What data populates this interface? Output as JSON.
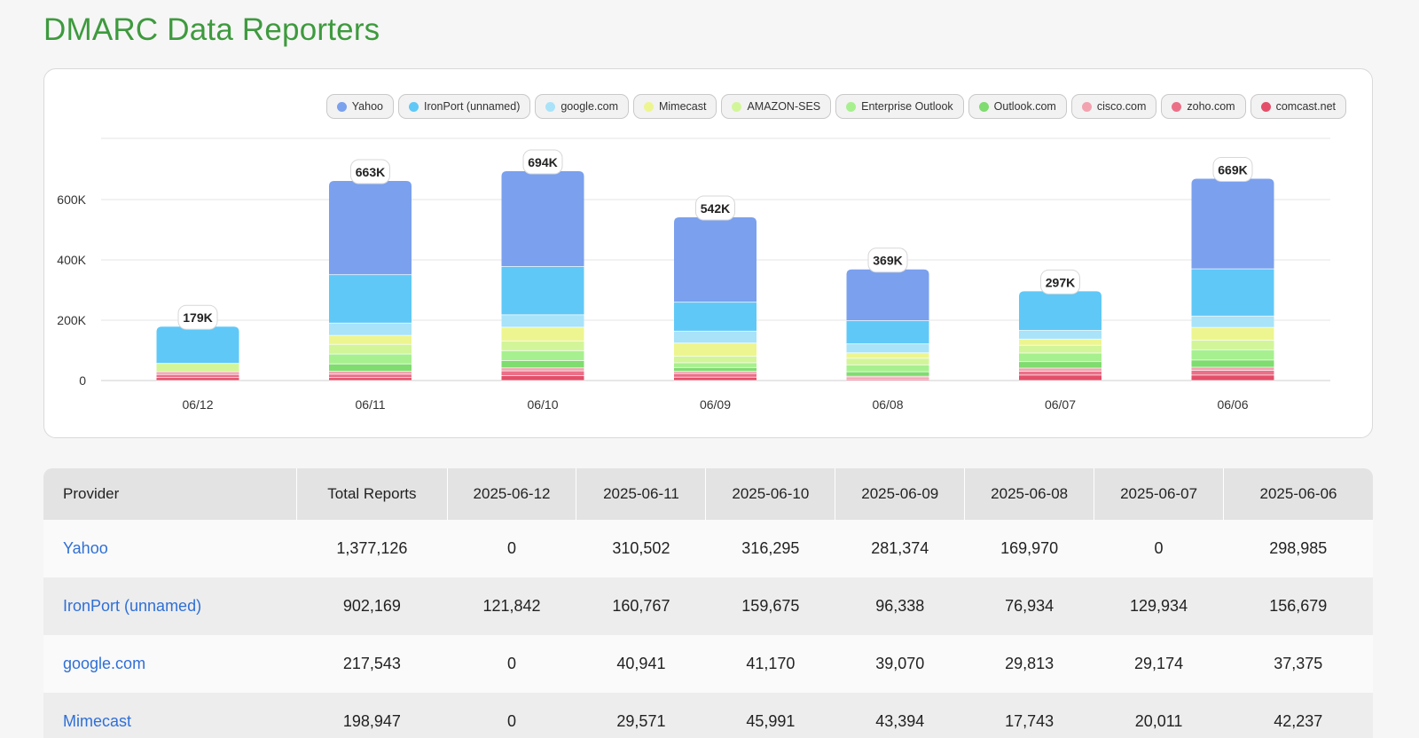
{
  "page": {
    "title": "DMARC Data Reporters"
  },
  "colors": {
    "Yahoo": "#7aa0ee",
    "IronPort (unnamed)": "#5fc8f7",
    "google.com": "#a8e3f9",
    "Mimecast": "#edf590",
    "AMAZON-SES": "#d3f59a",
    "Enterprise Outlook": "#a7f08f",
    "Outlook.com": "#7fdc6f",
    "cisco.com": "#f3a2b0",
    "zoho.com": "#ec6f88",
    "comcast.net": "#e44e69"
  },
  "chart_data": {
    "type": "bar",
    "stacked": true,
    "title": "",
    "xlabel": "",
    "ylabel": "",
    "ylim": [
      0,
      800000
    ],
    "yticks": [
      0,
      200000,
      400000,
      600000
    ],
    "ytick_labels": [
      "0",
      "200K",
      "400K",
      "600K"
    ],
    "legend_position": "top-right",
    "categories": [
      "06/12",
      "06/11",
      "06/10",
      "06/09",
      "06/08",
      "06/07",
      "06/06"
    ],
    "totals_labels": [
      "179K",
      "663K",
      "694K",
      "542K",
      "369K",
      "297K",
      "669K"
    ],
    "series": [
      {
        "name": "Yahoo",
        "values": [
          0,
          310502,
          316295,
          281374,
          169970,
          0,
          298985
        ]
      },
      {
        "name": "IronPort (unnamed)",
        "values": [
          121842,
          160767,
          159675,
          96338,
          76934,
          129934,
          156679
        ]
      },
      {
        "name": "google.com",
        "values": [
          0,
          40941,
          41170,
          39070,
          29813,
          29174,
          37375
        ]
      },
      {
        "name": "Mimecast",
        "values": [
          0,
          29571,
          45991,
          43394,
          17743,
          20011,
          42237
        ]
      },
      {
        "name": "AMAZON-SES",
        "values": [
          28000,
          32000,
          32000,
          22000,
          22000,
          26000,
          32000
        ]
      },
      {
        "name": "Enterprise Outlook",
        "values": [
          0,
          33000,
          33000,
          16000,
          23000,
          28000,
          34000
        ]
      },
      {
        "name": "Outlook.com",
        "values": [
          0,
          24000,
          24000,
          12000,
          15000,
          22000,
          24000
        ]
      },
      {
        "name": "cisco.com",
        "values": [
          9000,
          10000,
          10000,
          8000,
          5000,
          10000,
          10000
        ]
      },
      {
        "name": "zoho.com",
        "values": [
          10000,
          11000,
          16000,
          12000,
          5000,
          13000,
          16000
        ]
      },
      {
        "name": "comcast.net",
        "values": [
          10000,
          10000,
          16000,
          11000,
          4000,
          18000,
          18000
        ]
      }
    ]
  },
  "table": {
    "headers": [
      "Provider",
      "Total Reports",
      "2025-06-12",
      "2025-06-11",
      "2025-06-10",
      "2025-06-09",
      "2025-06-08",
      "2025-06-07",
      "2025-06-06"
    ],
    "rows": [
      {
        "provider": "Yahoo",
        "cells": [
          "1,377,126",
          "0",
          "310,502",
          "316,295",
          "281,374",
          "169,970",
          "0",
          "298,985"
        ]
      },
      {
        "provider": "IronPort (unnamed)",
        "cells": [
          "902,169",
          "121,842",
          "160,767",
          "159,675",
          "96,338",
          "76,934",
          "129,934",
          "156,679"
        ]
      },
      {
        "provider": "google.com",
        "cells": [
          "217,543",
          "0",
          "40,941",
          "41,170",
          "39,070",
          "29,813",
          "29,174",
          "37,375"
        ]
      },
      {
        "provider": "Mimecast",
        "cells": [
          "198,947",
          "0",
          "29,571",
          "45,991",
          "43,394",
          "17,743",
          "20,011",
          "42,237"
        ]
      }
    ]
  }
}
